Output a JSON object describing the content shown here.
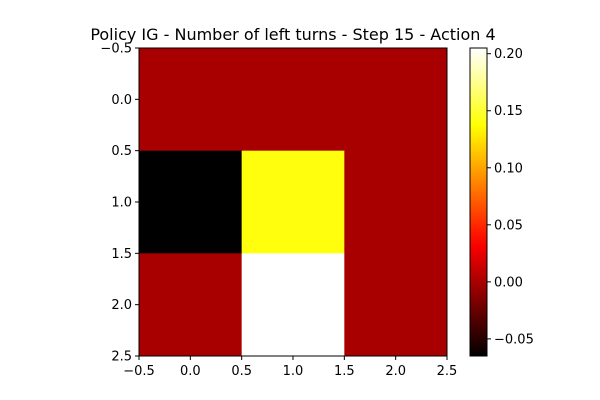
{
  "chart_data": {
    "type": "heatmap",
    "title": "Policy IG - Number of left turns - Step 15 - Action 4",
    "colormap": "hot",
    "x_ticks": [
      "−0.5",
      "0.0",
      "0.5",
      "1.0",
      "1.5",
      "2.0",
      "2.5"
    ],
    "y_ticks": [
      "−0.5",
      "0.0",
      "0.5",
      "1.0",
      "1.5",
      "2.0",
      "2.5"
    ],
    "xlim": [
      -0.5,
      2.5
    ],
    "ylim": [
      2.5,
      -0.5
    ],
    "values": [
      [
        0.0,
        0.0,
        0.0
      ],
      [
        -0.065,
        0.14,
        0.0
      ],
      [
        0.0,
        0.205,
        0.0
      ]
    ],
    "colorbar": {
      "range": [
        -0.065,
        0.205
      ],
      "tick_values": [
        -0.05,
        0.0,
        0.05,
        0.1,
        0.15,
        0.2
      ],
      "tick_labels": [
        "−0.05",
        "0.00",
        "0.05",
        "0.10",
        "0.15",
        "0.20"
      ]
    }
  }
}
